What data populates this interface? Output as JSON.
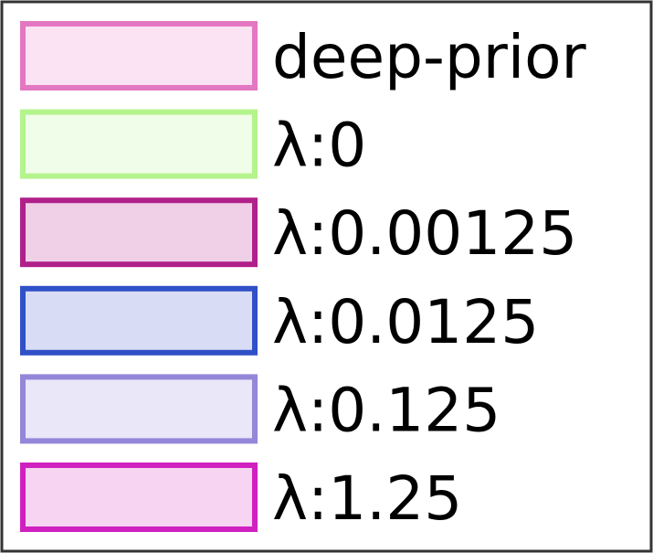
{
  "legend": {
    "items": [
      {
        "label": "deep-prior",
        "color": "#e377c2",
        "fill": "#fbe3f3"
      },
      {
        "label": "λ:0",
        "color": "#b4f48c",
        "fill": "#f0fde8"
      },
      {
        "label": "λ:0.00125",
        "color": "#b0208a",
        "fill": "#f0d0e6"
      },
      {
        "label": "λ:0.0125",
        "color": "#3050c8",
        "fill": "#d8ddf5"
      },
      {
        "label": "λ:0.125",
        "color": "#9486d8",
        "fill": "#e9e7f8"
      },
      {
        "label": "λ:1.25",
        "color": "#d020c0",
        "fill": "#f7d4f2"
      }
    ]
  }
}
